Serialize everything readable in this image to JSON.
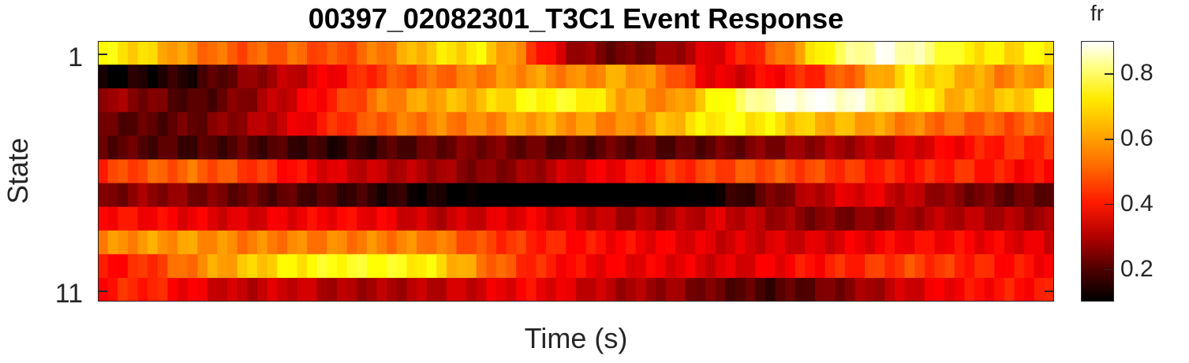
{
  "chart_data": {
    "type": "heatmap",
    "title": "00397_02082301_T3C1 Event Response",
    "xlabel": "Time (s)",
    "ylabel": "State",
    "y_tick_labels": [
      "1",
      "11"
    ],
    "y_range": [
      1,
      11
    ],
    "colorbar": {
      "title": "fr",
      "colormap": "hot",
      "clim": [
        0.1,
        0.9
      ],
      "tick_labels": [
        "0.2",
        "0.4",
        "0.6",
        "0.8"
      ],
      "tick_values": [
        0.2,
        0.4,
        0.6,
        0.8
      ]
    },
    "n_time_bins": 96,
    "rows": [
      {
        "state": 1,
        "anchors": [
          [
            0,
            0.7
          ],
          [
            0.05,
            0.65
          ],
          [
            0.1,
            0.55
          ],
          [
            0.15,
            0.5
          ],
          [
            0.2,
            0.52
          ],
          [
            0.25,
            0.48
          ],
          [
            0.3,
            0.55
          ],
          [
            0.35,
            0.65
          ],
          [
            0.4,
            0.68
          ],
          [
            0.44,
            0.55
          ],
          [
            0.47,
            0.4
          ],
          [
            0.5,
            0.28
          ],
          [
            0.55,
            0.22
          ],
          [
            0.6,
            0.28
          ],
          [
            0.65,
            0.38
          ],
          [
            0.7,
            0.48
          ],
          [
            0.74,
            0.62
          ],
          [
            0.78,
            0.78
          ],
          [
            0.82,
            0.88
          ],
          [
            0.86,
            0.82
          ],
          [
            0.9,
            0.7
          ],
          [
            0.95,
            0.66
          ],
          [
            1.0,
            0.7
          ]
        ]
      },
      {
        "state": 2,
        "anchors": [
          [
            0,
            0.1
          ],
          [
            0.05,
            0.13
          ],
          [
            0.1,
            0.15
          ],
          [
            0.15,
            0.25
          ],
          [
            0.2,
            0.32
          ],
          [
            0.25,
            0.4
          ],
          [
            0.3,
            0.48
          ],
          [
            0.35,
            0.52
          ],
          [
            0.4,
            0.55
          ],
          [
            0.45,
            0.58
          ],
          [
            0.5,
            0.55
          ],
          [
            0.55,
            0.6
          ],
          [
            0.6,
            0.52
          ],
          [
            0.63,
            0.4
          ],
          [
            0.66,
            0.35
          ],
          [
            0.7,
            0.4
          ],
          [
            0.75,
            0.45
          ],
          [
            0.8,
            0.55
          ],
          [
            0.85,
            0.68
          ],
          [
            0.9,
            0.62
          ],
          [
            0.95,
            0.55
          ],
          [
            1.0,
            0.6
          ]
        ]
      },
      {
        "state": 3,
        "anchors": [
          [
            0,
            0.3
          ],
          [
            0.05,
            0.25
          ],
          [
            0.1,
            0.18
          ],
          [
            0.15,
            0.25
          ],
          [
            0.2,
            0.35
          ],
          [
            0.25,
            0.45
          ],
          [
            0.3,
            0.55
          ],
          [
            0.35,
            0.6
          ],
          [
            0.4,
            0.62
          ],
          [
            0.45,
            0.7
          ],
          [
            0.5,
            0.72
          ],
          [
            0.55,
            0.6
          ],
          [
            0.6,
            0.55
          ],
          [
            0.65,
            0.7
          ],
          [
            0.7,
            0.85
          ],
          [
            0.75,
            0.9
          ],
          [
            0.8,
            0.85
          ],
          [
            0.85,
            0.72
          ],
          [
            0.9,
            0.6
          ],
          [
            0.95,
            0.62
          ],
          [
            1.0,
            0.7
          ]
        ]
      },
      {
        "state": 4,
        "anchors": [
          [
            0,
            0.22
          ],
          [
            0.05,
            0.2
          ],
          [
            0.1,
            0.22
          ],
          [
            0.15,
            0.28
          ],
          [
            0.2,
            0.35
          ],
          [
            0.25,
            0.45
          ],
          [
            0.3,
            0.52
          ],
          [
            0.35,
            0.55
          ],
          [
            0.4,
            0.55
          ],
          [
            0.45,
            0.6
          ],
          [
            0.5,
            0.58
          ],
          [
            0.55,
            0.55
          ],
          [
            0.6,
            0.62
          ],
          [
            0.65,
            0.7
          ],
          [
            0.7,
            0.68
          ],
          [
            0.75,
            0.62
          ],
          [
            0.8,
            0.6
          ],
          [
            0.85,
            0.55
          ],
          [
            0.9,
            0.52
          ],
          [
            0.95,
            0.5
          ],
          [
            1.0,
            0.52
          ]
        ]
      },
      {
        "state": 5,
        "anchors": [
          [
            0,
            0.22
          ],
          [
            0.05,
            0.2
          ],
          [
            0.1,
            0.18
          ],
          [
            0.15,
            0.2
          ],
          [
            0.2,
            0.18
          ],
          [
            0.25,
            0.15
          ],
          [
            0.3,
            0.18
          ],
          [
            0.35,
            0.22
          ],
          [
            0.4,
            0.25
          ],
          [
            0.45,
            0.22
          ],
          [
            0.5,
            0.2
          ],
          [
            0.55,
            0.22
          ],
          [
            0.6,
            0.2
          ],
          [
            0.65,
            0.22
          ],
          [
            0.7,
            0.25
          ],
          [
            0.75,
            0.28
          ],
          [
            0.8,
            0.3
          ],
          [
            0.85,
            0.35
          ],
          [
            0.9,
            0.4
          ],
          [
            0.95,
            0.45
          ],
          [
            1.0,
            0.45
          ]
        ]
      },
      {
        "state": 6,
        "anchors": [
          [
            0,
            0.45
          ],
          [
            0.05,
            0.5
          ],
          [
            0.1,
            0.52
          ],
          [
            0.15,
            0.48
          ],
          [
            0.2,
            0.42
          ],
          [
            0.25,
            0.35
          ],
          [
            0.3,
            0.32
          ],
          [
            0.35,
            0.3
          ],
          [
            0.4,
            0.25
          ],
          [
            0.45,
            0.28
          ],
          [
            0.5,
            0.35
          ],
          [
            0.55,
            0.4
          ],
          [
            0.6,
            0.45
          ],
          [
            0.65,
            0.48
          ],
          [
            0.7,
            0.5
          ],
          [
            0.75,
            0.48
          ],
          [
            0.8,
            0.45
          ],
          [
            0.85,
            0.42
          ],
          [
            0.9,
            0.45
          ],
          [
            0.95,
            0.42
          ],
          [
            1.0,
            0.4
          ]
        ]
      },
      {
        "state": 7,
        "anchors": [
          [
            0,
            0.22
          ],
          [
            0.05,
            0.28
          ],
          [
            0.1,
            0.25
          ],
          [
            0.15,
            0.22
          ],
          [
            0.2,
            0.2
          ],
          [
            0.25,
            0.18
          ],
          [
            0.3,
            0.15
          ],
          [
            0.35,
            0.12
          ],
          [
            0.4,
            0.08
          ],
          [
            0.45,
            0.05
          ],
          [
            0.5,
            0.03
          ],
          [
            0.55,
            0.03
          ],
          [
            0.6,
            0.05
          ],
          [
            0.65,
            0.12
          ],
          [
            0.7,
            0.22
          ],
          [
            0.75,
            0.32
          ],
          [
            0.8,
            0.38
          ],
          [
            0.85,
            0.32
          ],
          [
            0.9,
            0.25
          ],
          [
            0.95,
            0.22
          ],
          [
            1.0,
            0.22
          ]
        ]
      },
      {
        "state": 8,
        "anchors": [
          [
            0,
            0.42
          ],
          [
            0.05,
            0.4
          ],
          [
            0.1,
            0.38
          ],
          [
            0.15,
            0.35
          ],
          [
            0.2,
            0.38
          ],
          [
            0.25,
            0.4
          ],
          [
            0.3,
            0.38
          ],
          [
            0.35,
            0.32
          ],
          [
            0.4,
            0.35
          ],
          [
            0.45,
            0.38
          ],
          [
            0.5,
            0.35
          ],
          [
            0.55,
            0.3
          ],
          [
            0.6,
            0.3
          ],
          [
            0.65,
            0.35
          ],
          [
            0.7,
            0.3
          ],
          [
            0.75,
            0.25
          ],
          [
            0.8,
            0.25
          ],
          [
            0.85,
            0.3
          ],
          [
            0.9,
            0.32
          ],
          [
            0.95,
            0.3
          ],
          [
            1.0,
            0.28
          ]
        ]
      },
      {
        "state": 9,
        "anchors": [
          [
            0,
            0.55
          ],
          [
            0.05,
            0.58
          ],
          [
            0.1,
            0.58
          ],
          [
            0.15,
            0.55
          ],
          [
            0.2,
            0.55
          ],
          [
            0.25,
            0.55
          ],
          [
            0.3,
            0.55
          ],
          [
            0.35,
            0.55
          ],
          [
            0.4,
            0.48
          ],
          [
            0.45,
            0.45
          ],
          [
            0.5,
            0.42
          ],
          [
            0.55,
            0.4
          ],
          [
            0.6,
            0.38
          ],
          [
            0.65,
            0.35
          ],
          [
            0.7,
            0.35
          ],
          [
            0.75,
            0.35
          ],
          [
            0.8,
            0.38
          ],
          [
            0.85,
            0.4
          ],
          [
            0.9,
            0.4
          ],
          [
            0.95,
            0.38
          ],
          [
            1.0,
            0.35
          ]
        ]
      },
      {
        "state": 10,
        "anchors": [
          [
            0,
            0.4
          ],
          [
            0.05,
            0.45
          ],
          [
            0.1,
            0.55
          ],
          [
            0.15,
            0.62
          ],
          [
            0.2,
            0.68
          ],
          [
            0.25,
            0.72
          ],
          [
            0.3,
            0.72
          ],
          [
            0.35,
            0.68
          ],
          [
            0.4,
            0.55
          ],
          [
            0.45,
            0.45
          ],
          [
            0.5,
            0.4
          ],
          [
            0.55,
            0.38
          ],
          [
            0.6,
            0.38
          ],
          [
            0.65,
            0.35
          ],
          [
            0.7,
            0.38
          ],
          [
            0.75,
            0.42
          ],
          [
            0.8,
            0.45
          ],
          [
            0.85,
            0.48
          ],
          [
            0.9,
            0.45
          ],
          [
            0.95,
            0.42
          ],
          [
            1.0,
            0.4
          ]
        ]
      },
      {
        "state": 11,
        "anchors": [
          [
            0,
            0.42
          ],
          [
            0.05,
            0.45
          ],
          [
            0.1,
            0.38
          ],
          [
            0.15,
            0.32
          ],
          [
            0.2,
            0.35
          ],
          [
            0.25,
            0.3
          ],
          [
            0.3,
            0.3
          ],
          [
            0.35,
            0.32
          ],
          [
            0.4,
            0.35
          ],
          [
            0.45,
            0.4
          ],
          [
            0.5,
            0.35
          ],
          [
            0.55,
            0.3
          ],
          [
            0.6,
            0.28
          ],
          [
            0.65,
            0.22
          ],
          [
            0.7,
            0.18
          ],
          [
            0.75,
            0.22
          ],
          [
            0.8,
            0.28
          ],
          [
            0.85,
            0.35
          ],
          [
            0.9,
            0.4
          ],
          [
            0.95,
            0.42
          ],
          [
            1.0,
            0.42
          ]
        ]
      }
    ]
  }
}
